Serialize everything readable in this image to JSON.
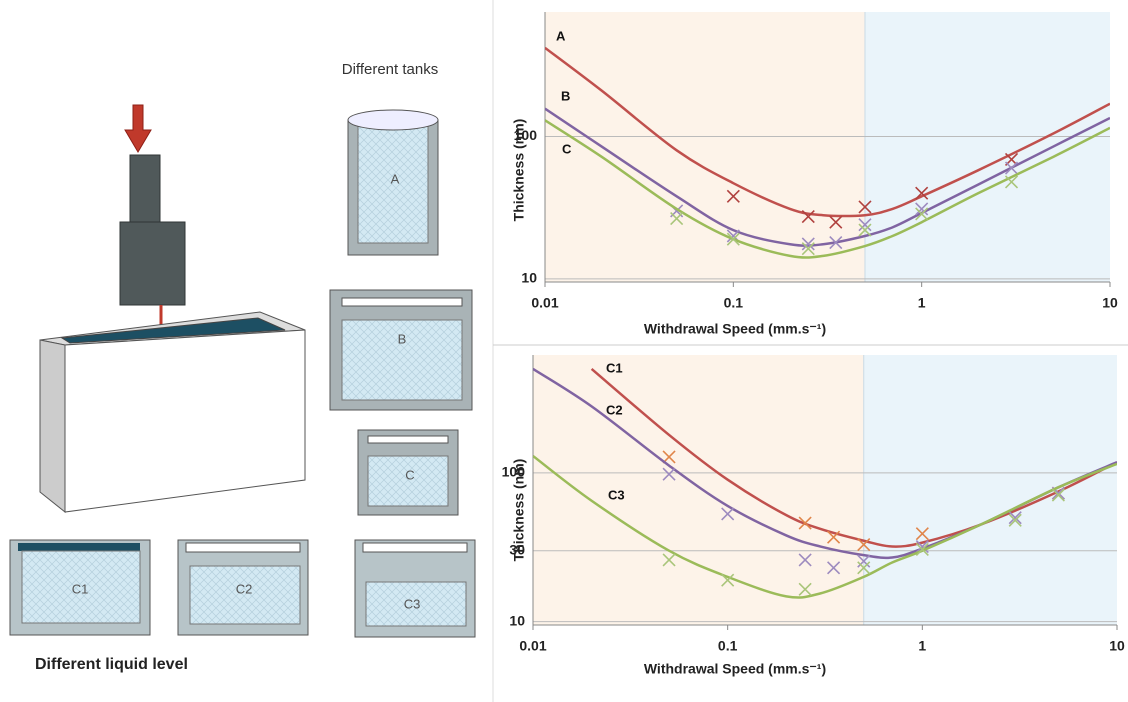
{
  "illustration": {
    "tanks_title": "Different tanks",
    "tanks": [
      "A",
      "B",
      "C"
    ],
    "levels": [
      "C1",
      "C2",
      "C3"
    ],
    "levels_title": "Different liquid level"
  },
  "chart_data": [
    {
      "type": "line",
      "xlabel": "Withdrawal Speed (mm.s⁻¹)",
      "ylabel": "Thickness (nm)",
      "log_x": true,
      "log_y": true,
      "xlim": [
        0.01,
        10
      ],
      "xticks": [
        0.01,
        0.1,
        1,
        10
      ],
      "ylim": [
        9.5,
        750
      ],
      "yticks": [
        10,
        100
      ],
      "grid": true,
      "shade_split_x": 0.5,
      "shade_colors": [
        "#fdf3e9",
        "#eaf4fa"
      ],
      "x": [
        0.01,
        0.02,
        0.05,
        0.1,
        0.2,
        0.3,
        0.5,
        0.7,
        1,
        2,
        5,
        10
      ],
      "series": [
        {
          "name": "A",
          "color": "#c0504d",
          "values": [
            420,
            210,
            80,
            47,
            31,
            28,
            28,
            31,
            38,
            58,
            105,
            170
          ],
          "points": {
            "color": "#b0413e",
            "x": [
              0.1,
              0.25,
              0.35,
              0.5,
              1,
              3
            ],
            "values": [
              38,
              27.4,
              25,
              32,
              40,
              69
            ]
          }
        },
        {
          "name": "B",
          "color": "#8064a2",
          "values": [
            157,
            85,
            38,
            22,
            17.5,
            17.5,
            20,
            23,
            29,
            46,
            85,
            135
          ],
          "points": {
            "color": "#9d8bbf",
            "x": [
              0.05,
              0.1,
              0.25,
              0.35,
              0.5,
              1,
              3
            ],
            "values": [
              30,
              20,
              17.6,
              18,
              24,
              31,
              60
            ]
          }
        },
        {
          "name": "C",
          "color": "#9bbb59",
          "values": [
            130,
            72,
            31,
            19,
            14.5,
            14.5,
            17,
            20,
            25,
            40,
            72,
            115
          ],
          "points": {
            "color": "#a9c57a",
            "x": [
              0.05,
              0.1,
              0.25,
              0.5,
              1,
              3
            ],
            "values": [
              26.5,
              19,
              16.3,
              22,
              28.6,
              48
            ]
          }
        }
      ]
    },
    {
      "type": "line",
      "xlabel": "Withdrawal Speed (mm.s⁻¹)",
      "ylabel": "Thickness (nm)",
      "log_x": true,
      "log_y": true,
      "xlim": [
        0.01,
        10
      ],
      "xticks": [
        0.01,
        0.1,
        1,
        10
      ],
      "ylim": [
        9.5,
        620
      ],
      "yticks": [
        10,
        30,
        100
      ],
      "grid": true,
      "shade_split_x": 0.5,
      "shade_colors": [
        "#fdf3e9",
        "#eaf4fa"
      ],
      "x": [
        0.01,
        0.02,
        0.05,
        0.1,
        0.2,
        0.3,
        0.5,
        0.7,
        1,
        2,
        5,
        10
      ],
      "series": [
        {
          "name": "C1",
          "color": "#c0504d",
          "values": [
            null,
            500,
            180,
            90,
            52,
            42,
            35,
            32,
            34,
            45,
            75,
            118
          ],
          "points": {
            "color": "#e0854a",
            "x": [
              0.05,
              0.25,
              0.35,
              0.5,
              1,
              5
            ],
            "values": [
              128,
              46,
              37,
              33,
              39,
              73
            ]
          }
        },
        {
          "name": "C2",
          "color": "#8064a2",
          "values": [
            500,
            280,
            112,
            60,
            38,
            32,
            28,
            27,
            31,
            45,
            80,
            118
          ],
          "points": {
            "color": "#9d8bbf",
            "x": [
              0.05,
              0.1,
              0.25,
              0.35,
              0.5,
              1,
              3,
              5
            ],
            "values": [
              98,
              53,
              26,
              23,
              25.5,
              32,
              50,
              73
            ]
          }
        },
        {
          "name": "C3",
          "color": "#9bbb59",
          "values": [
            130,
            65,
            30,
            20,
            14.8,
            15.5,
            20,
            25,
            30,
            45,
            80,
            115
          ],
          "points": {
            "color": "#a9c57a",
            "x": [
              0.05,
              0.1,
              0.25,
              0.5,
              1,
              3,
              5
            ],
            "values": [
              26,
              19,
              16.5,
              23,
              30.6,
              48,
              71
            ]
          }
        }
      ]
    }
  ]
}
